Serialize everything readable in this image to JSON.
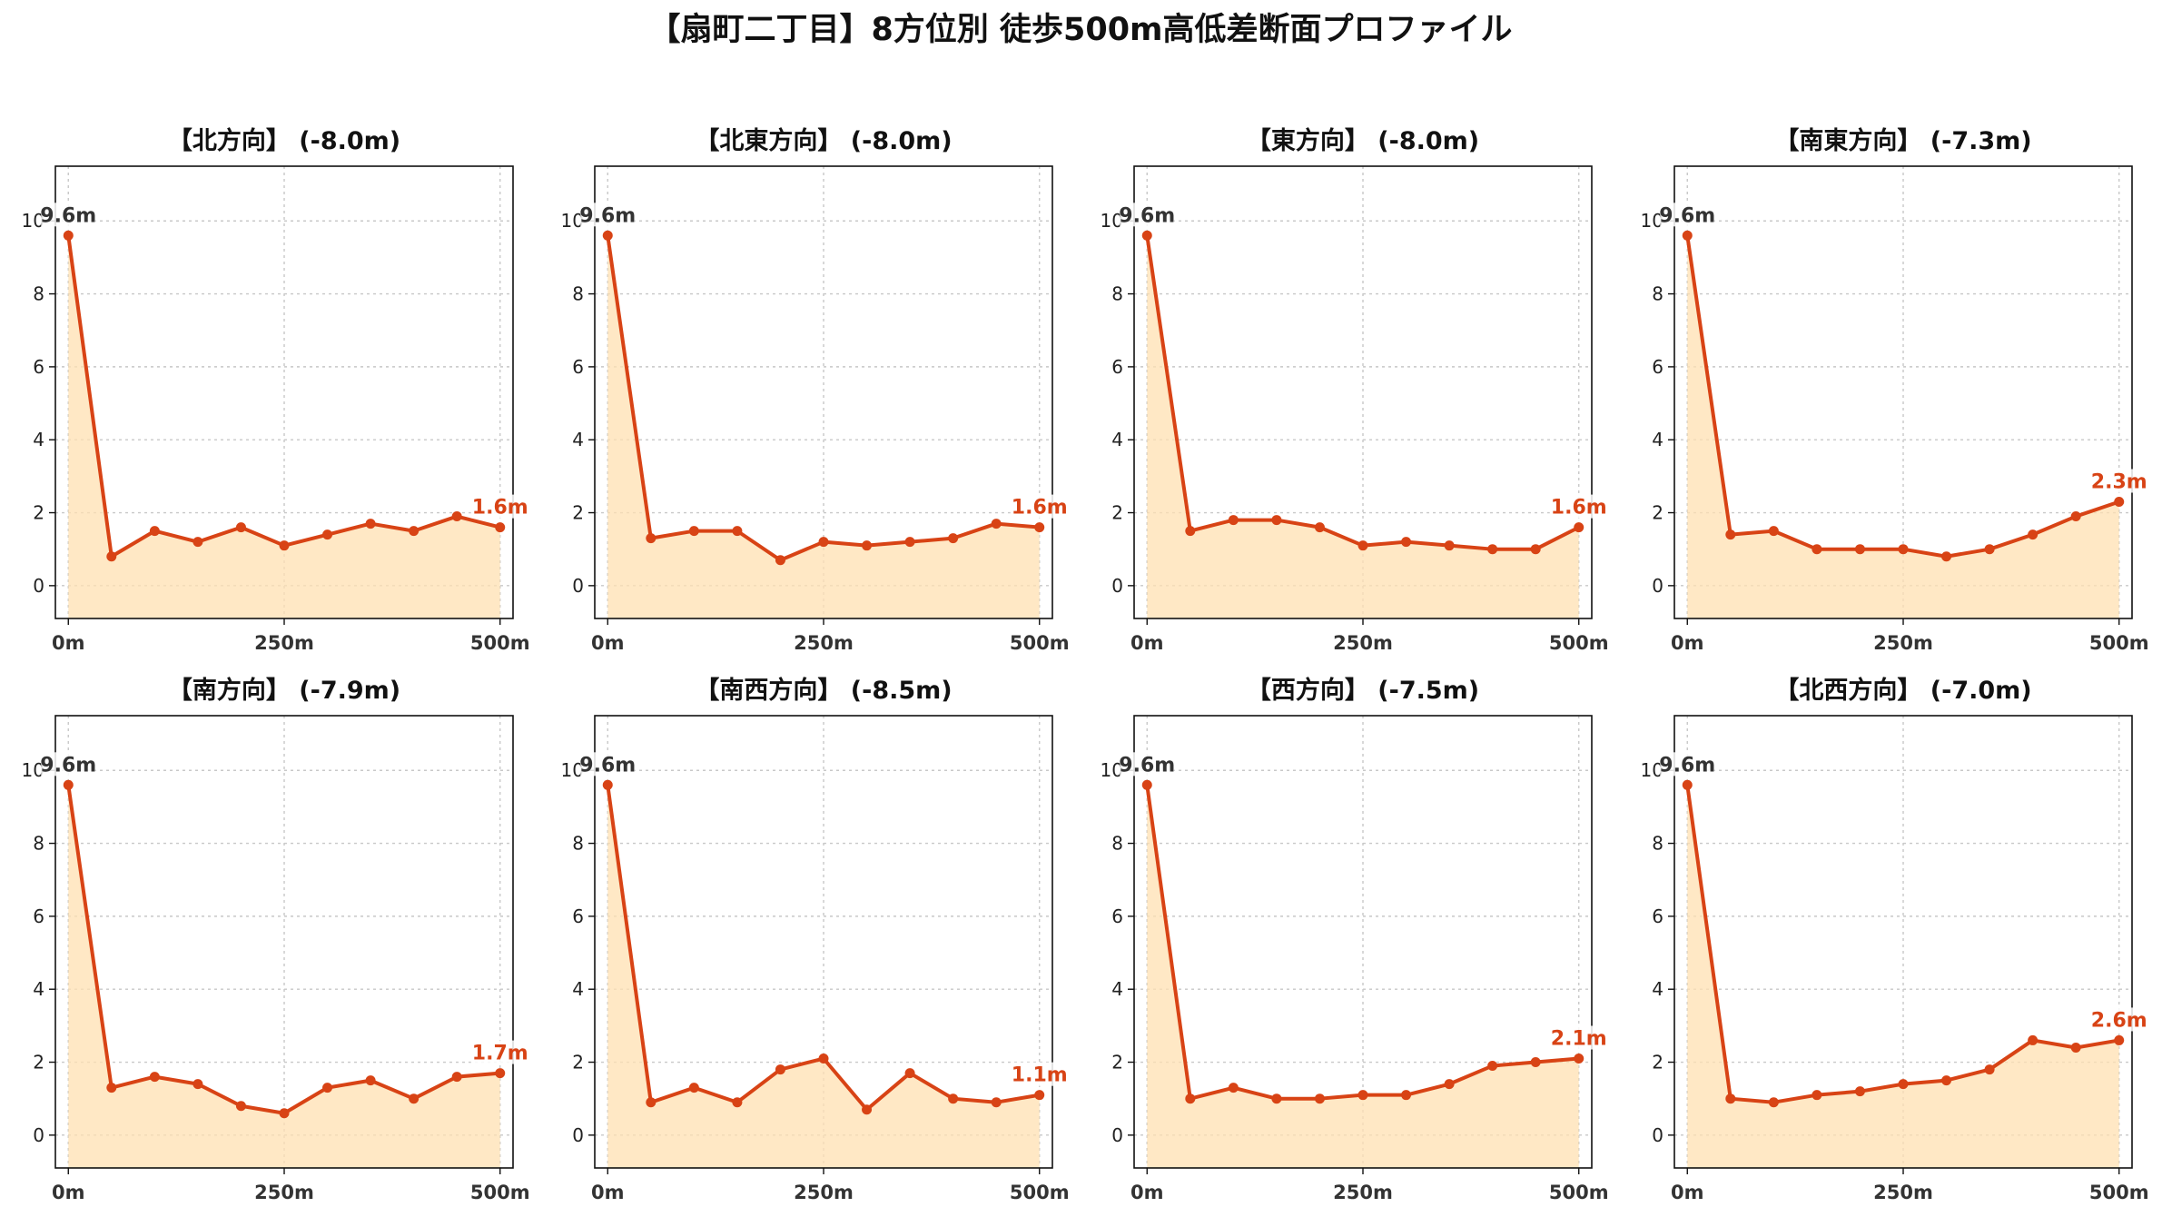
{
  "title": "【扇町二丁目】8方位別 徒歩500m高低差断面プロファイル",
  "colors": {
    "line": "#d84315",
    "fill": "#ffe0b2",
    "grid": "#c8c8c8",
    "start_label": "#333333",
    "end_label": "#d84315"
  },
  "chart_data": [
    {
      "type": "area",
      "title": "【北方向】 (-8.0m)",
      "x": [
        0,
        50,
        100,
        150,
        200,
        250,
        300,
        350,
        400,
        450,
        500
      ],
      "y": [
        9.6,
        0.8,
        1.5,
        1.2,
        1.6,
        1.1,
        1.4,
        1.7,
        1.5,
        1.9,
        1.6
      ],
      "start_label": "9.6m",
      "end_label": "1.6m",
      "xticks": [
        "0m",
        "250m",
        "500m"
      ],
      "yticks": [
        "0",
        "2",
        "4",
        "6",
        "8",
        "10"
      ],
      "xlim": [
        -15,
        515
      ],
      "ylim": [
        -0.9,
        11.5
      ],
      "grid": true
    },
    {
      "type": "area",
      "title": "【北東方向】 (-8.0m)",
      "x": [
        0,
        50,
        100,
        150,
        200,
        250,
        300,
        350,
        400,
        450,
        500
      ],
      "y": [
        9.6,
        1.3,
        1.5,
        1.5,
        0.7,
        1.2,
        1.1,
        1.2,
        1.3,
        1.7,
        1.6
      ],
      "start_label": "9.6m",
      "end_label": "1.6m",
      "xticks": [
        "0m",
        "250m",
        "500m"
      ],
      "yticks": [
        "0",
        "2",
        "4",
        "6",
        "8",
        "10"
      ],
      "xlim": [
        -15,
        515
      ],
      "ylim": [
        -0.9,
        11.5
      ],
      "grid": true
    },
    {
      "type": "area",
      "title": "【東方向】 (-8.0m)",
      "x": [
        0,
        50,
        100,
        150,
        200,
        250,
        300,
        350,
        400,
        450,
        500
      ],
      "y": [
        9.6,
        1.5,
        1.8,
        1.8,
        1.6,
        1.1,
        1.2,
        1.1,
        1.0,
        1.0,
        1.6
      ],
      "start_label": "9.6m",
      "end_label": "1.6m",
      "xticks": [
        "0m",
        "250m",
        "500m"
      ],
      "yticks": [
        "0",
        "2",
        "4",
        "6",
        "8",
        "10"
      ],
      "xlim": [
        -15,
        515
      ],
      "ylim": [
        -0.9,
        11.5
      ],
      "grid": true
    },
    {
      "type": "area",
      "title": "【南東方向】 (-7.3m)",
      "x": [
        0,
        50,
        100,
        150,
        200,
        250,
        300,
        350,
        400,
        450,
        500
      ],
      "y": [
        9.6,
        1.4,
        1.5,
        1.0,
        1.0,
        1.0,
        0.8,
        1.0,
        1.4,
        1.9,
        2.3
      ],
      "start_label": "9.6m",
      "end_label": "2.3m",
      "xticks": [
        "0m",
        "250m",
        "500m"
      ],
      "yticks": [
        "0",
        "2",
        "4",
        "6",
        "8",
        "10"
      ],
      "xlim": [
        -15,
        515
      ],
      "ylim": [
        -0.9,
        11.5
      ],
      "grid": true
    },
    {
      "type": "area",
      "title": "【南方向】 (-7.9m)",
      "x": [
        0,
        50,
        100,
        150,
        200,
        250,
        300,
        350,
        400,
        450,
        500
      ],
      "y": [
        9.6,
        1.3,
        1.6,
        1.4,
        0.8,
        0.6,
        1.3,
        1.5,
        1.0,
        1.6,
        1.7
      ],
      "start_label": "9.6m",
      "end_label": "1.7m",
      "xticks": [
        "0m",
        "250m",
        "500m"
      ],
      "yticks": [
        "0",
        "2",
        "4",
        "6",
        "8",
        "10"
      ],
      "xlim": [
        -15,
        515
      ],
      "ylim": [
        -0.9,
        11.5
      ],
      "grid": true
    },
    {
      "type": "area",
      "title": "【南西方向】 (-8.5m)",
      "x": [
        0,
        50,
        100,
        150,
        200,
        250,
        300,
        350,
        400,
        450,
        500
      ],
      "y": [
        9.6,
        0.9,
        1.3,
        0.9,
        1.8,
        2.1,
        0.7,
        1.7,
        1.0,
        0.9,
        1.1
      ],
      "start_label": "9.6m",
      "end_label": "1.1m",
      "xticks": [
        "0m",
        "250m",
        "500m"
      ],
      "yticks": [
        "0",
        "2",
        "4",
        "6",
        "8",
        "10"
      ],
      "xlim": [
        -15,
        515
      ],
      "ylim": [
        -0.9,
        11.5
      ],
      "grid": true
    },
    {
      "type": "area",
      "title": "【西方向】 (-7.5m)",
      "x": [
        0,
        50,
        100,
        150,
        200,
        250,
        300,
        350,
        400,
        450,
        500
      ],
      "y": [
        9.6,
        1.0,
        1.3,
        1.0,
        1.0,
        1.1,
        1.1,
        1.4,
        1.9,
        2.0,
        2.1
      ],
      "start_label": "9.6m",
      "end_label": "2.1m",
      "xticks": [
        "0m",
        "250m",
        "500m"
      ],
      "yticks": [
        "0",
        "2",
        "4",
        "6",
        "8",
        "10"
      ],
      "xlim": [
        -15,
        515
      ],
      "ylim": [
        -0.9,
        11.5
      ],
      "grid": true
    },
    {
      "type": "area",
      "title": "【北西方向】 (-7.0m)",
      "x": [
        0,
        50,
        100,
        150,
        200,
        250,
        300,
        350,
        400,
        450,
        500
      ],
      "y": [
        9.6,
        1.0,
        0.9,
        1.1,
        1.2,
        1.4,
        1.5,
        1.8,
        2.6,
        2.4,
        2.6
      ],
      "start_label": "9.6m",
      "end_label": "2.6m",
      "xticks": [
        "0m",
        "250m",
        "500m"
      ],
      "yticks": [
        "0",
        "2",
        "4",
        "6",
        "8",
        "10"
      ],
      "xlim": [
        -15,
        515
      ],
      "ylim": [
        -0.9,
        11.5
      ],
      "grid": true
    }
  ]
}
